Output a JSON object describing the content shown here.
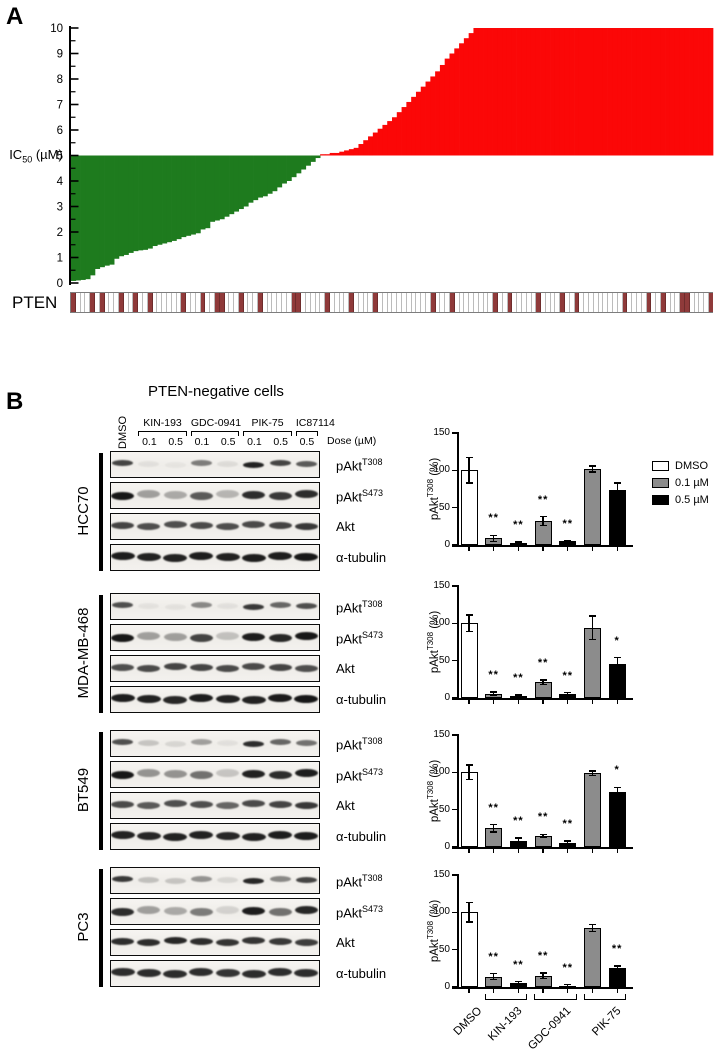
{
  "panel_a": {
    "label": "A",
    "ylabel_base": "IC",
    "ylabel_sub": "50",
    "ylabel_rest": " (µM)",
    "pten_label": "PTEN"
  },
  "panel_b": {
    "label": "B",
    "title": "PTEN-negative cells",
    "control_label": "DMSO",
    "dose_row_label": "Dose (µM)",
    "drug_groups": [
      {
        "name": "KIN-193",
        "doses": [
          "0.1",
          "0.5"
        ]
      },
      {
        "name": "GDC-0941",
        "doses": [
          "0.1",
          "0.5"
        ]
      },
      {
        "name": "PIK-75",
        "doses": [
          "0.1",
          "0.5"
        ]
      },
      {
        "name": "IC87114",
        "doses": [
          "0.5"
        ]
      }
    ],
    "antibodies": [
      {
        "base": "pAkt",
        "sup": "T308"
      },
      {
        "base": "pAkt",
        "sup": "S473"
      },
      {
        "base": "Akt",
        "sup": ""
      },
      {
        "base": "α-tubulin",
        "sup": ""
      }
    ],
    "cell_lines": [
      {
        "name": "HCC70",
        "bands": [
          [
            0.75,
            0.06,
            0.04,
            0.5,
            0.08,
            0.9,
            0.75,
            0.65
          ],
          [
            0.95,
            0.35,
            0.3,
            0.65,
            0.25,
            0.85,
            0.8,
            0.85
          ],
          [
            0.75,
            0.7,
            0.7,
            0.72,
            0.7,
            0.72,
            0.75,
            0.8
          ],
          [
            0.92,
            0.9,
            0.9,
            0.92,
            0.9,
            0.92,
            0.92,
            0.95
          ]
        ]
      },
      {
        "name": "MDA-MB-468",
        "bands": [
          [
            0.7,
            0.05,
            0.05,
            0.45,
            0.06,
            0.8,
            0.6,
            0.7
          ],
          [
            0.95,
            0.35,
            0.35,
            0.75,
            0.2,
            0.92,
            0.88,
            0.95
          ],
          [
            0.7,
            0.72,
            0.75,
            0.75,
            0.72,
            0.72,
            0.75,
            0.7
          ],
          [
            0.92,
            0.9,
            0.88,
            0.92,
            0.9,
            0.9,
            0.93,
            0.95
          ]
        ]
      },
      {
        "name": "BT549",
        "bands": [
          [
            0.7,
            0.18,
            0.1,
            0.35,
            0.06,
            0.85,
            0.6,
            0.55
          ],
          [
            0.95,
            0.4,
            0.4,
            0.55,
            0.18,
            0.9,
            0.85,
            0.92
          ],
          [
            0.72,
            0.65,
            0.7,
            0.7,
            0.6,
            0.72,
            0.75,
            0.8
          ],
          [
            0.9,
            0.88,
            0.9,
            0.9,
            0.88,
            0.9,
            0.92,
            0.92
          ]
        ]
      },
      {
        "name": "PC3",
        "bands": [
          [
            0.8,
            0.2,
            0.18,
            0.4,
            0.1,
            0.88,
            0.45,
            0.75
          ],
          [
            0.85,
            0.35,
            0.3,
            0.5,
            0.12,
            0.92,
            0.55,
            0.88
          ],
          [
            0.85,
            0.85,
            0.88,
            0.85,
            0.82,
            0.82,
            0.8,
            0.78
          ],
          [
            0.85,
            0.85,
            0.85,
            0.85,
            0.82,
            0.85,
            0.85,
            0.85
          ]
        ]
      }
    ]
  },
  "pten_status": {
    "count": 134,
    "positive_indices": [
      0,
      4,
      6,
      10,
      13,
      16,
      23,
      27,
      30,
      31,
      35,
      39,
      46,
      47,
      53,
      58,
      63,
      75,
      79,
      88,
      91,
      97,
      102,
      105,
      115,
      120,
      123,
      127,
      128,
      133
    ]
  },
  "legend": {
    "items": [
      {
        "label": "DMSO",
        "fill": "#ffffff"
      },
      {
        "label": "0.1 µM",
        "fill": "#8c8c8c"
      },
      {
        "label": "0.5 µM",
        "fill": "#000000"
      }
    ]
  },
  "chart_data": [
    {
      "type": "bar",
      "name": "ic50-waterfall",
      "ylabel": "IC50 (µM)",
      "ylim": [
        0,
        10
      ],
      "yticks": [
        0,
        1,
        2,
        3,
        4,
        5,
        6,
        7,
        8,
        9,
        10
      ],
      "baseline": 5,
      "below_color": "#1e7b1e",
      "above_color": "#fb0707",
      "values": [
        0.08,
        0.1,
        0.12,
        0.15,
        0.3,
        0.55,
        0.62,
        0.68,
        0.72,
        0.95,
        1.05,
        1.1,
        1.18,
        1.25,
        1.28,
        1.3,
        1.35,
        1.45,
        1.5,
        1.55,
        1.6,
        1.65,
        1.72,
        1.8,
        1.85,
        1.9,
        1.95,
        2.1,
        2.15,
        2.4,
        2.45,
        2.5,
        2.6,
        2.7,
        2.8,
        2.9,
        3.0,
        3.15,
        3.25,
        3.35,
        3.4,
        3.5,
        3.6,
        3.75,
        3.9,
        4.0,
        4.15,
        4.3,
        4.45,
        4.6,
        4.75,
        4.9,
        5.05,
        5.05,
        5.1,
        5.1,
        5.15,
        5.2,
        5.25,
        5.3,
        5.45,
        5.6,
        5.75,
        5.9,
        6.05,
        6.2,
        6.35,
        6.5,
        6.7,
        6.9,
        7.1,
        7.3,
        7.5,
        7.7,
        7.9,
        8.1,
        8.3,
        8.55,
        8.8,
        9.0,
        9.2,
        9.4,
        9.6,
        9.8,
        10,
        10,
        10,
        10,
        10,
        10,
        10,
        10,
        10,
        10,
        10,
        10,
        10,
        10,
        10,
        10,
        10,
        10,
        10,
        10,
        10,
        10,
        10,
        10,
        10,
        10,
        10,
        10,
        10,
        10,
        10,
        10,
        10,
        10,
        10,
        10,
        10,
        10,
        10,
        10,
        10,
        10,
        10,
        10,
        10,
        10,
        10,
        10,
        10,
        10
      ]
    },
    {
      "type": "bar",
      "cell_line": "HCC70",
      "ylabel_parts": {
        "base": "pAkt",
        "sup": "T308",
        "rest": " (%)"
      },
      "ylim": [
        0,
        150
      ],
      "yticks": [
        0,
        50,
        100,
        150
      ],
      "bars": [
        {
          "group": "DMSO",
          "dose": "",
          "value": 100,
          "error": 17,
          "fill": "#ffffff",
          "sig": ""
        },
        {
          "group": "KIN-193",
          "dose": "0.1",
          "value": 9,
          "error": 4,
          "fill": "#8c8c8c",
          "sig": "**"
        },
        {
          "group": "KIN-193",
          "dose": "0.5",
          "value": 3,
          "error": 1,
          "fill": "#000000",
          "sig": "**"
        },
        {
          "group": "GDC-0941",
          "dose": "0.1",
          "value": 32,
          "error": 6,
          "fill": "#8c8c8c",
          "sig": "**"
        },
        {
          "group": "GDC-0941",
          "dose": "0.5",
          "value": 5,
          "error": 1,
          "fill": "#000000",
          "sig": "**"
        },
        {
          "group": "PIK-75",
          "dose": "0.1",
          "value": 102,
          "error": 4,
          "fill": "#8c8c8c",
          "sig": ""
        },
        {
          "group": "PIK-75",
          "dose": "0.5",
          "value": 73,
          "error": 10,
          "fill": "#000000",
          "sig": ""
        }
      ]
    },
    {
      "type": "bar",
      "cell_line": "MDA-MB-468",
      "ylabel_parts": {
        "base": "pAkt",
        "sup": "T308",
        "rest": " (%)"
      },
      "ylim": [
        0,
        150
      ],
      "yticks": [
        0,
        50,
        100,
        150
      ],
      "bars": [
        {
          "group": "DMSO",
          "dose": "",
          "value": 100,
          "error": 11,
          "fill": "#ffffff",
          "sig": ""
        },
        {
          "group": "KIN-193",
          "dose": "0.1",
          "value": 6,
          "error": 2,
          "fill": "#8c8c8c",
          "sig": "**"
        },
        {
          "group": "KIN-193",
          "dose": "0.5",
          "value": 3,
          "error": 1,
          "fill": "#000000",
          "sig": "**"
        },
        {
          "group": "GDC-0941",
          "dose": "0.1",
          "value": 21,
          "error": 3,
          "fill": "#8c8c8c",
          "sig": "**"
        },
        {
          "group": "GDC-0941",
          "dose": "0.5",
          "value": 5,
          "error": 2,
          "fill": "#000000",
          "sig": "**"
        },
        {
          "group": "PIK-75",
          "dose": "0.1",
          "value": 94,
          "error": 16,
          "fill": "#8c8c8c",
          "sig": ""
        },
        {
          "group": "PIK-75",
          "dose": "0.5",
          "value": 46,
          "error": 8,
          "fill": "#000000",
          "sig": "*"
        }
      ]
    },
    {
      "type": "bar",
      "cell_line": "BT549",
      "ylabel_parts": {
        "base": "pAkt",
        "sup": "T308",
        "rest": " (%)"
      },
      "ylim": [
        0,
        150
      ],
      "yticks": [
        0,
        50,
        100,
        150
      ],
      "bars": [
        {
          "group": "DMSO",
          "dose": "",
          "value": 100,
          "error": 10,
          "fill": "#ffffff",
          "sig": ""
        },
        {
          "group": "KIN-193",
          "dose": "0.1",
          "value": 25,
          "error": 5,
          "fill": "#8c8c8c",
          "sig": "**"
        },
        {
          "group": "KIN-193",
          "dose": "0.5",
          "value": 8,
          "error": 4,
          "fill": "#000000",
          "sig": "**"
        },
        {
          "group": "GDC-0941",
          "dose": "0.1",
          "value": 15,
          "error": 2,
          "fill": "#8c8c8c",
          "sig": "**"
        },
        {
          "group": "GDC-0941",
          "dose": "0.5",
          "value": 6,
          "error": 2,
          "fill": "#000000",
          "sig": "**"
        },
        {
          "group": "PIK-75",
          "dose": "0.1",
          "value": 99,
          "error": 3,
          "fill": "#8c8c8c",
          "sig": ""
        },
        {
          "group": "PIK-75",
          "dose": "0.5",
          "value": 73,
          "error": 7,
          "fill": "#000000",
          "sig": "*"
        }
      ]
    },
    {
      "type": "bar",
      "cell_line": "PC3",
      "ylabel_parts": {
        "base": "pAkt",
        "sup": "T308",
        "rest": " (%)"
      },
      "ylim": [
        0,
        150
      ],
      "yticks": [
        0,
        50,
        100,
        150
      ],
      "x_group_labels": [
        "DMSO",
        "KIN-193",
        "GDC-0941",
        "PIK-75"
      ],
      "bars": [
        {
          "group": "DMSO",
          "dose": "",
          "value": 100,
          "error": 13,
          "fill": "#ffffff",
          "sig": ""
        },
        {
          "group": "KIN-193",
          "dose": "0.1",
          "value": 14,
          "error": 4,
          "fill": "#8c8c8c",
          "sig": "**"
        },
        {
          "group": "KIN-193",
          "dose": "0.5",
          "value": 6,
          "error": 1,
          "fill": "#000000",
          "sig": "**"
        },
        {
          "group": "GDC-0941",
          "dose": "0.1",
          "value": 15,
          "error": 4,
          "fill": "#8c8c8c",
          "sig": "**"
        },
        {
          "group": "GDC-0941",
          "dose": "0.5",
          "value": 2,
          "error": 1,
          "fill": "#000000",
          "sig": "**"
        },
        {
          "group": "PIK-75",
          "dose": "0.1",
          "value": 79,
          "error": 5,
          "fill": "#8c8c8c",
          "sig": ""
        },
        {
          "group": "PIK-75",
          "dose": "0.5",
          "value": 25,
          "error": 3,
          "fill": "#000000",
          "sig": "**"
        }
      ]
    }
  ]
}
